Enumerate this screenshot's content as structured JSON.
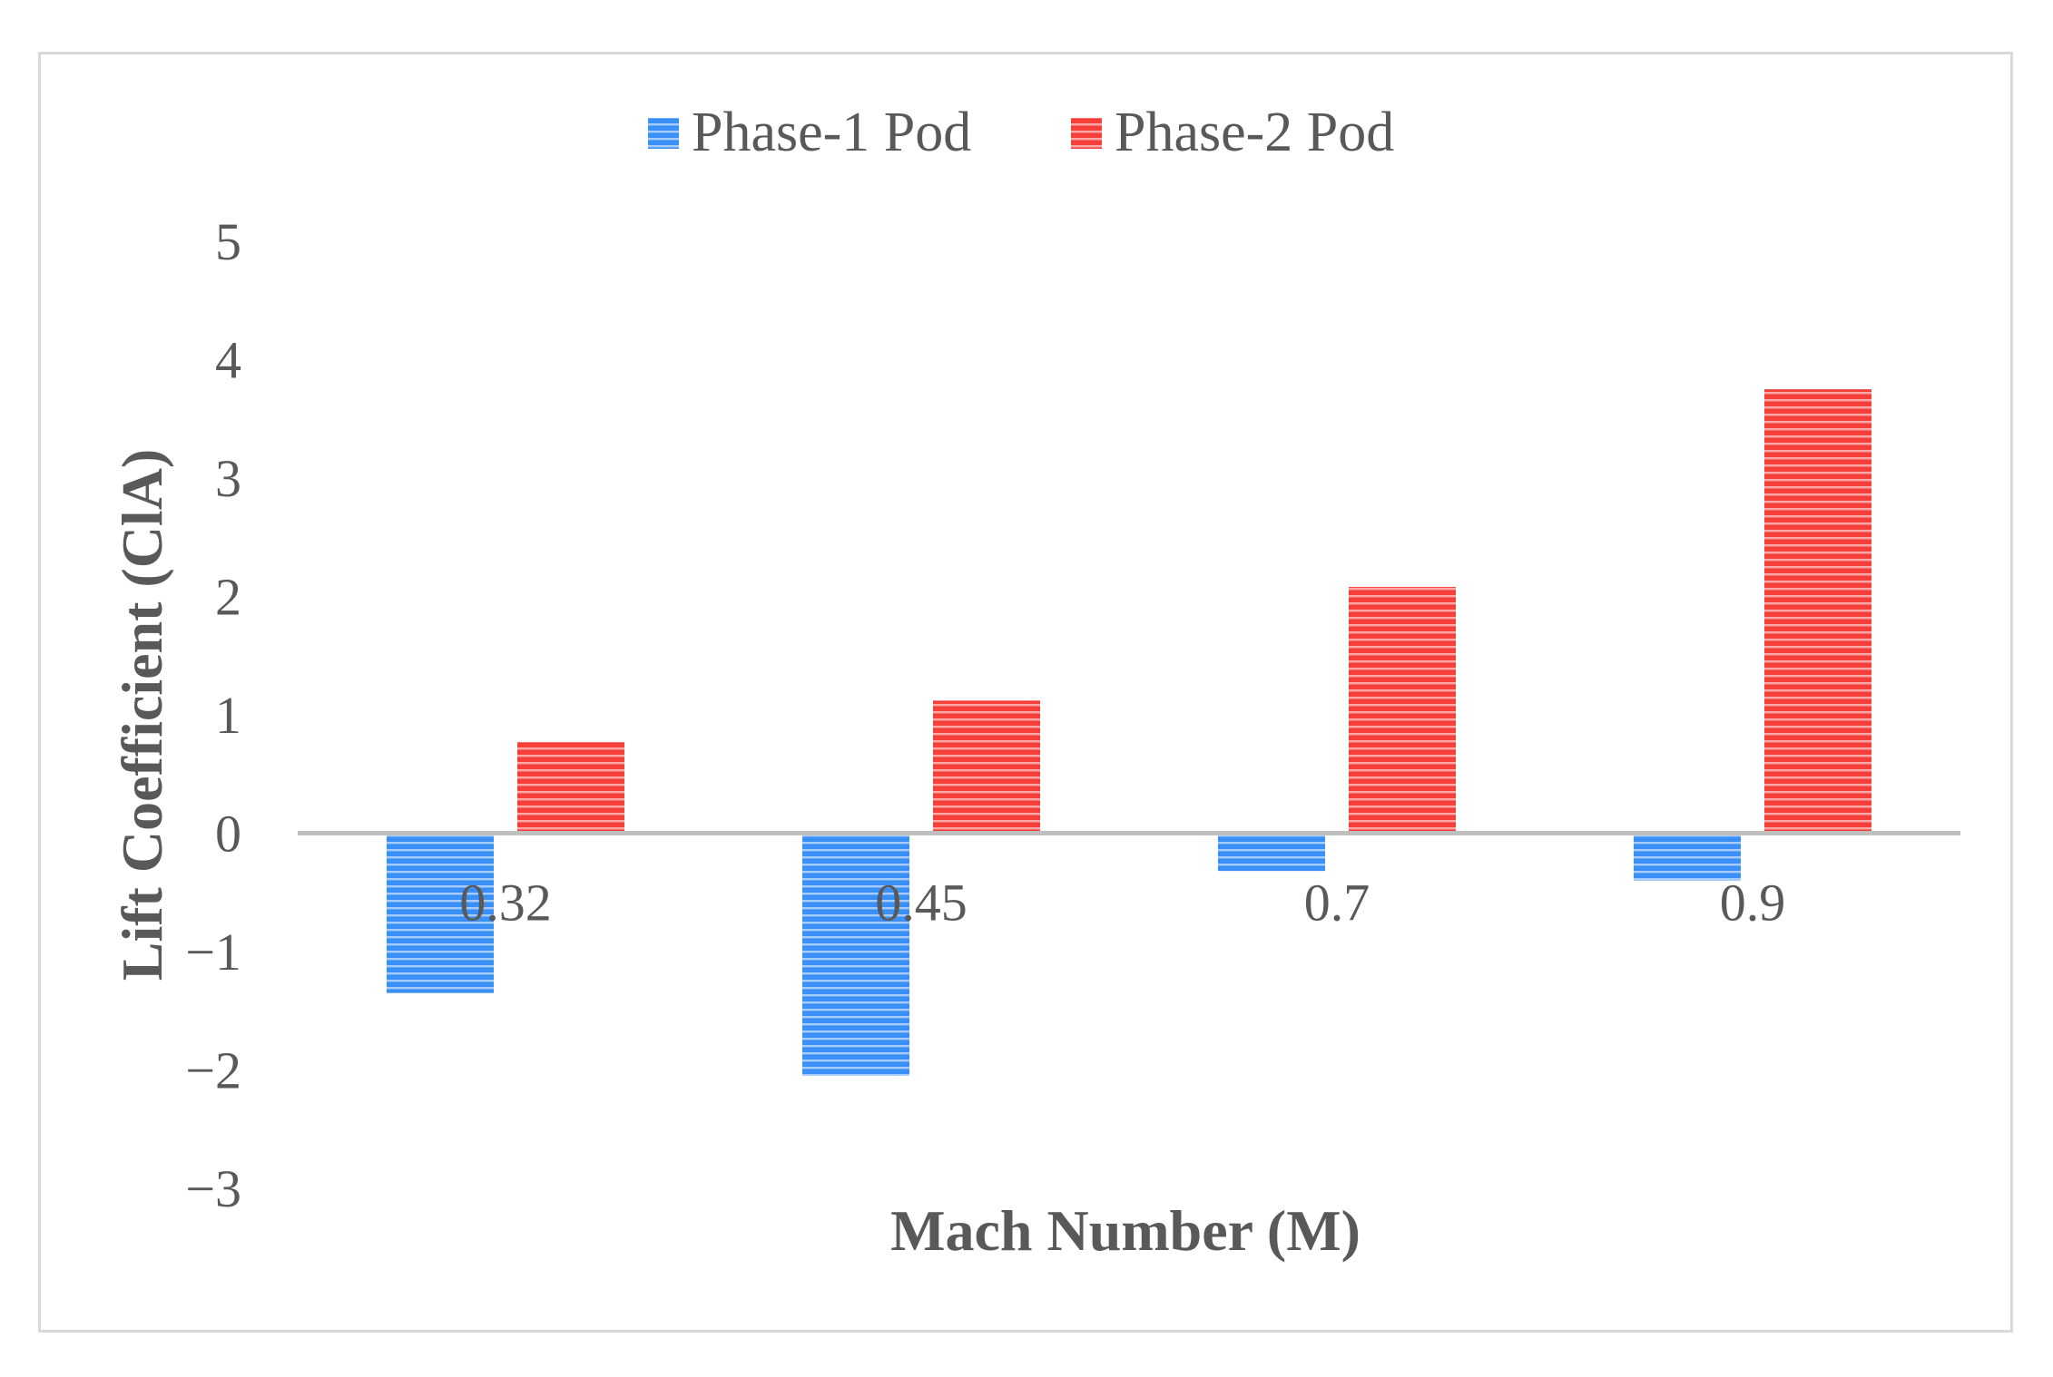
{
  "chart_data": {
    "type": "bar",
    "categories": [
      "0.32",
      "0.45",
      "0.7",
      "0.9"
    ],
    "series": [
      {
        "name": "Phase-1 Pod",
        "color": "#3a8ff5",
        "values": [
          -1.35,
          -2.05,
          -0.32,
          -0.4
        ]
      },
      {
        "name": "Phase-2 Pod",
        "color": "#f5403a",
        "values": [
          0.77,
          1.12,
          2.08,
          3.75
        ]
      }
    ],
    "xlabel": "Mach Number (M)",
    "ylabel": "Lift Coefficient (ClA)",
    "ylim": [
      -3,
      5
    ],
    "yticks": [
      "5",
      "4",
      "3",
      "2",
      "1",
      "0",
      "−1",
      "−2",
      "−3"
    ],
    "ytick_values": [
      5,
      4,
      3,
      2,
      1,
      0,
      -1,
      -2,
      -3
    ],
    "grid": false,
    "legend_position": "top-center",
    "bar_fill": "horizontal-stripes"
  }
}
